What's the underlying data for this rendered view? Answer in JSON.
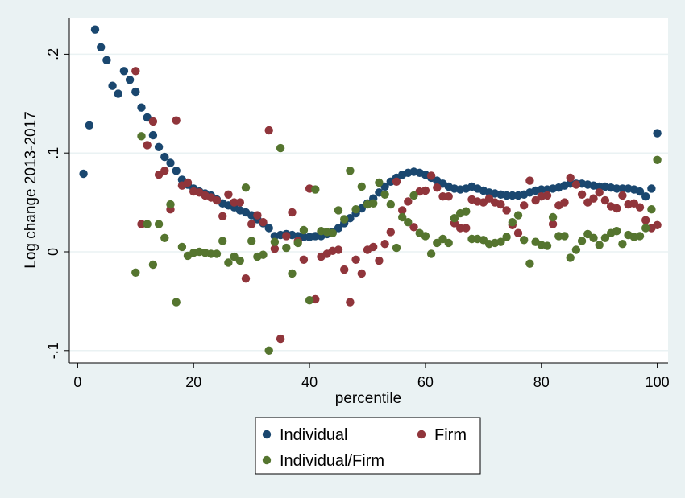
{
  "chart_data": {
    "type": "scatter",
    "xlabel": "percentile",
    "ylabel": "Log change 2013-2017",
    "xlim": [
      0,
      100
    ],
    "ylim": [
      -0.11,
      0.235
    ],
    "x_ticks": [
      {
        "value": 0,
        "label": "0"
      },
      {
        "value": 20,
        "label": "20"
      },
      {
        "value": 40,
        "label": "40"
      },
      {
        "value": 60,
        "label": "60"
      },
      {
        "value": 80,
        "label": "80"
      },
      {
        "value": 100,
        "label": "100"
      }
    ],
    "y_ticks": [
      {
        "value": -0.1,
        "label": "-.1"
      },
      {
        "value": 0,
        "label": "0"
      },
      {
        "value": 0.1,
        "label": ".1"
      },
      {
        "value": 0.2,
        "label": ".2"
      }
    ],
    "grid": true,
    "legend_position": "bottom",
    "series": [
      {
        "name": "Individual",
        "color": "#1a476f",
        "points": [
          [
            1,
            0.079
          ],
          [
            2,
            0.128
          ],
          [
            3,
            0.225
          ],
          [
            4,
            0.207
          ],
          [
            5,
            0.194
          ],
          [
            6,
            0.168
          ],
          [
            7,
            0.16
          ],
          [
            8,
            0.183
          ],
          [
            9,
            0.174
          ],
          [
            10,
            0.162
          ],
          [
            11,
            0.146
          ],
          [
            12,
            0.136
          ],
          [
            13,
            0.118
          ],
          [
            14,
            0.106
          ],
          [
            15,
            0.096
          ],
          [
            16,
            0.09
          ],
          [
            17,
            0.082
          ],
          [
            18,
            0.073
          ],
          [
            19,
            0.068
          ],
          [
            20,
            0.064
          ],
          [
            21,
            0.061
          ],
          [
            22,
            0.059
          ],
          [
            23,
            0.057
          ],
          [
            24,
            0.053
          ],
          [
            25,
            0.049
          ],
          [
            26,
            0.047
          ],
          [
            27,
            0.045
          ],
          [
            28,
            0.042
          ],
          [
            29,
            0.04
          ],
          [
            30,
            0.037
          ],
          [
            31,
            0.033
          ],
          [
            32,
            0.029
          ],
          [
            33,
            0.024
          ],
          [
            34,
            0.016
          ],
          [
            35,
            0.017
          ],
          [
            36,
            0.018
          ],
          [
            37,
            0.017
          ],
          [
            38,
            0.016
          ],
          [
            39,
            0.015
          ],
          [
            40,
            0.015
          ],
          [
            41,
            0.016
          ],
          [
            42,
            0.016
          ],
          [
            43,
            0.018
          ],
          [
            44,
            0.02
          ],
          [
            45,
            0.024
          ],
          [
            46,
            0.029
          ],
          [
            47,
            0.034
          ],
          [
            48,
            0.039
          ],
          [
            49,
            0.044
          ],
          [
            50,
            0.049
          ],
          [
            51,
            0.054
          ],
          [
            52,
            0.06
          ],
          [
            53,
            0.066
          ],
          [
            54,
            0.071
          ],
          [
            55,
            0.075
          ],
          [
            56,
            0.078
          ],
          [
            57,
            0.08
          ],
          [
            58,
            0.081
          ],
          [
            59,
            0.08
          ],
          [
            60,
            0.078
          ],
          [
            61,
            0.075
          ],
          [
            62,
            0.072
          ],
          [
            63,
            0.069
          ],
          [
            64,
            0.066
          ],
          [
            65,
            0.064
          ],
          [
            66,
            0.063
          ],
          [
            67,
            0.064
          ],
          [
            68,
            0.066
          ],
          [
            69,
            0.064
          ],
          [
            70,
            0.062
          ],
          [
            71,
            0.06
          ],
          [
            72,
            0.059
          ],
          [
            73,
            0.058
          ],
          [
            74,
            0.057
          ],
          [
            75,
            0.057
          ],
          [
            76,
            0.057
          ],
          [
            77,
            0.058
          ],
          [
            78,
            0.06
          ],
          [
            79,
            0.062
          ],
          [
            80,
            0.063
          ],
          [
            81,
            0.063
          ],
          [
            82,
            0.064
          ],
          [
            83,
            0.065
          ],
          [
            84,
            0.067
          ],
          [
            85,
            0.069
          ],
          [
            86,
            0.069
          ],
          [
            87,
            0.069
          ],
          [
            88,
            0.068
          ],
          [
            89,
            0.067
          ],
          [
            90,
            0.066
          ],
          [
            91,
            0.066
          ],
          [
            92,
            0.065
          ],
          [
            93,
            0.064
          ],
          [
            94,
            0.064
          ],
          [
            95,
            0.064
          ],
          [
            96,
            0.063
          ],
          [
            97,
            0.061
          ],
          [
            98,
            0.056
          ],
          [
            99,
            0.064
          ],
          [
            100,
            0.12
          ]
        ]
      },
      {
        "name": "Firm",
        "color": "#90353b",
        "points": [
          [
            10,
            0.183
          ],
          [
            11,
            0.028
          ],
          [
            12,
            0.108
          ],
          [
            13,
            0.132
          ],
          [
            14,
            0.078
          ],
          [
            15,
            0.082
          ],
          [
            16,
            0.043
          ],
          [
            17,
            0.133
          ],
          [
            18,
            0.067
          ],
          [
            19,
            0.07
          ],
          [
            20,
            0.061
          ],
          [
            21,
            0.06
          ],
          [
            22,
            0.057
          ],
          [
            23,
            0.055
          ],
          [
            24,
            0.052
          ],
          [
            25,
            0.036
          ],
          [
            26,
            0.058
          ],
          [
            27,
            0.05
          ],
          [
            28,
            0.05
          ],
          [
            29,
            -0.027
          ],
          [
            30,
            0.028
          ],
          [
            31,
            0.037
          ],
          [
            32,
            0.03
          ],
          [
            33,
            0.123
          ],
          [
            34,
            0.003
          ],
          [
            35,
            -0.088
          ],
          [
            36,
            0.016
          ],
          [
            37,
            0.04
          ],
          [
            38,
            0.011
          ],
          [
            39,
            -0.008
          ],
          [
            40,
            0.064
          ],
          [
            41,
            -0.048
          ],
          [
            42,
            -0.005
          ],
          [
            43,
            -0.002
          ],
          [
            44,
            0.001
          ],
          [
            45,
            0.002
          ],
          [
            46,
            -0.018
          ],
          [
            47,
            -0.051
          ],
          [
            48,
            -0.008
          ],
          [
            49,
            -0.022
          ],
          [
            50,
            0.002
          ],
          [
            51,
            0.005
          ],
          [
            52,
            -0.009
          ],
          [
            53,
            0.008
          ],
          [
            54,
            0.02
          ],
          [
            55,
            0.071
          ],
          [
            56,
            0.042
          ],
          [
            57,
            0.051
          ],
          [
            58,
            0.025
          ],
          [
            59,
            0.061
          ],
          [
            60,
            0.062
          ],
          [
            61,
            0.077
          ],
          [
            62,
            0.065
          ],
          [
            63,
            0.056
          ],
          [
            64,
            0.056
          ],
          [
            65,
            0.029
          ],
          [
            66,
            0.024
          ],
          [
            67,
            0.024
          ],
          [
            68,
            0.053
          ],
          [
            69,
            0.051
          ],
          [
            70,
            0.05
          ],
          [
            71,
            0.054
          ],
          [
            72,
            0.05
          ],
          [
            73,
            0.048
          ],
          [
            74,
            0.042
          ],
          [
            75,
            0.027
          ],
          [
            76,
            0.019
          ],
          [
            77,
            0.047
          ],
          [
            78,
            0.072
          ],
          [
            79,
            0.052
          ],
          [
            80,
            0.056
          ],
          [
            81,
            0.057
          ],
          [
            82,
            0.028
          ],
          [
            83,
            0.047
          ],
          [
            84,
            0.05
          ],
          [
            85,
            0.075
          ],
          [
            86,
            0.068
          ],
          [
            87,
            0.058
          ],
          [
            88,
            0.05
          ],
          [
            89,
            0.054
          ],
          [
            90,
            0.06
          ],
          [
            91,
            0.052
          ],
          [
            92,
            0.046
          ],
          [
            93,
            0.044
          ],
          [
            94,
            0.057
          ],
          [
            95,
            0.048
          ],
          [
            96,
            0.049
          ],
          [
            97,
            0.045
          ],
          [
            98,
            0.032
          ],
          [
            99,
            0.024
          ],
          [
            100,
            0.027
          ]
        ]
      },
      {
        "name": "Individual/Firm",
        "color": "#55752f",
        "points": [
          [
            10,
            -0.021
          ],
          [
            11,
            0.117
          ],
          [
            12,
            0.028
          ],
          [
            13,
            -0.013
          ],
          [
            14,
            0.028
          ],
          [
            15,
            0.014
          ],
          [
            16,
            0.048
          ],
          [
            17,
            -0.051
          ],
          [
            18,
            0.005
          ],
          [
            19,
            -0.004
          ],
          [
            20,
            -0.001
          ],
          [
            21,
            0.0
          ],
          [
            22,
            -0.001
          ],
          [
            23,
            -0.002
          ],
          [
            24,
            -0.002
          ],
          [
            25,
            0.011
          ],
          [
            26,
            -0.011
          ],
          [
            27,
            -0.005
          ],
          [
            28,
            -0.009
          ],
          [
            29,
            0.065
          ],
          [
            30,
            0.011
          ],
          [
            31,
            -0.005
          ],
          [
            32,
            -0.003
          ],
          [
            33,
            -0.1
          ],
          [
            34,
            0.01
          ],
          [
            35,
            0.105
          ],
          [
            36,
            0.004
          ],
          [
            37,
            -0.022
          ],
          [
            38,
            0.009
          ],
          [
            39,
            0.022
          ],
          [
            40,
            -0.049
          ],
          [
            41,
            0.063
          ],
          [
            42,
            0.021
          ],
          [
            43,
            0.02
          ],
          [
            44,
            0.019
          ],
          [
            45,
            0.042
          ],
          [
            46,
            0.033
          ],
          [
            47,
            0.082
          ],
          [
            48,
            0.043
          ],
          [
            49,
            0.066
          ],
          [
            50,
            0.048
          ],
          [
            51,
            0.049
          ],
          [
            52,
            0.07
          ],
          [
            53,
            0.058
          ],
          [
            54,
            0.048
          ],
          [
            55,
            0.004
          ],
          [
            56,
            0.035
          ],
          [
            57,
            0.03
          ],
          [
            58,
            0.057
          ],
          [
            59,
            0.019
          ],
          [
            60,
            0.016
          ],
          [
            61,
            -0.002
          ],
          [
            62,
            0.009
          ],
          [
            63,
            0.013
          ],
          [
            64,
            0.009
          ],
          [
            65,
            0.034
          ],
          [
            66,
            0.039
          ],
          [
            67,
            0.041
          ],
          [
            68,
            0.013
          ],
          [
            69,
            0.013
          ],
          [
            70,
            0.012
          ],
          [
            71,
            0.008
          ],
          [
            72,
            0.009
          ],
          [
            73,
            0.01
          ],
          [
            74,
            0.015
          ],
          [
            75,
            0.03
          ],
          [
            76,
            0.037
          ],
          [
            77,
            0.012
          ],
          [
            78,
            -0.012
          ],
          [
            79,
            0.01
          ],
          [
            80,
            0.007
          ],
          [
            81,
            0.006
          ],
          [
            82,
            0.035
          ],
          [
            83,
            0.016
          ],
          [
            84,
            0.016
          ],
          [
            85,
            -0.006
          ],
          [
            86,
            0.002
          ],
          [
            87,
            0.011
          ],
          [
            88,
            0.018
          ],
          [
            89,
            0.014
          ],
          [
            90,
            0.007
          ],
          [
            91,
            0.014
          ],
          [
            92,
            0.019
          ],
          [
            93,
            0.021
          ],
          [
            94,
            0.008
          ],
          [
            95,
            0.017
          ],
          [
            96,
            0.015
          ],
          [
            97,
            0.016
          ],
          [
            98,
            0.024
          ],
          [
            99,
            0.043
          ],
          [
            100,
            0.093
          ]
        ]
      }
    ]
  }
}
